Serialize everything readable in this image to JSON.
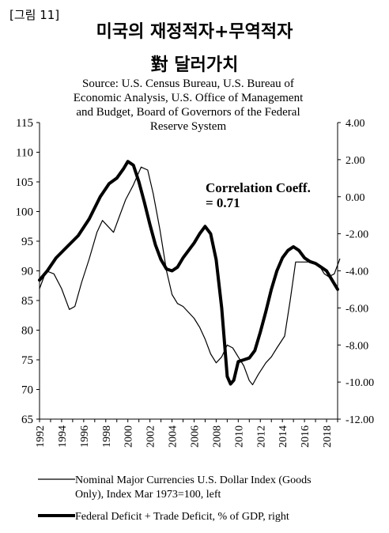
{
  "figure_label": "[그림 11]",
  "title_line1": "미국의 재정적자+무역적자",
  "title_line2": "對 달러가치",
  "chart_data": {
    "type": "line",
    "source_lines": [
      "Source:  U.S. Census Bureau, U.S. Bureau of",
      "Economic  Analysis, U.S. Office of Management",
      "and Budget, Board of Governors of the Federal",
      "Reserve System"
    ],
    "annotation": [
      "Correlation Coeff.",
      "= 0.71"
    ],
    "xlim": [
      1992,
      2019
    ],
    "x_ticks": [
      1992,
      1994,
      1996,
      1998,
      2000,
      2002,
      2004,
      2006,
      2008,
      2010,
      2012,
      2014,
      2016,
      2018
    ],
    "left_axis": {
      "ylim": [
        65,
        115
      ],
      "ticks": [
        "65",
        "70",
        "75",
        "80",
        "85",
        "90",
        "95",
        "100",
        "105",
        "110",
        "115"
      ]
    },
    "right_axis": {
      "ylim": [
        -12,
        4
      ],
      "ticks": [
        "-12.00",
        "-10.00",
        "-8.00",
        "-6.00",
        "-4.00",
        "-2.00",
        "0.00",
        "2.00",
        "4.00"
      ]
    },
    "series": [
      {
        "name": "Nominal Major Currencies U.S. Dollar Index (Goods Only), Index Mar 1973=100, left",
        "axis": "left",
        "legend_lines": [
          "Nominal Major Currencies U.S. Dollar Index (Goods",
          "Only), Index Mar 1973=100, left"
        ],
        "points": [
          [
            1992.0,
            87
          ],
          [
            1992.6,
            90
          ],
          [
            1993.3,
            89.5
          ],
          [
            1994.0,
            87
          ],
          [
            1994.7,
            83.5
          ],
          [
            1995.2,
            84
          ],
          [
            1995.8,
            88
          ],
          [
            1996.5,
            92
          ],
          [
            1997.2,
            96.5
          ],
          [
            1997.7,
            98.5
          ],
          [
            1998.2,
            97.5
          ],
          [
            1998.7,
            96.5
          ],
          [
            1999.2,
            99
          ],
          [
            1999.8,
            102
          ],
          [
            2000.5,
            104.5
          ],
          [
            2001.2,
            107.5
          ],
          [
            2001.8,
            107
          ],
          [
            2002.3,
            103
          ],
          [
            2002.9,
            97
          ],
          [
            2003.5,
            90
          ],
          [
            2004.0,
            86
          ],
          [
            2004.5,
            84.5
          ],
          [
            2005.0,
            84
          ],
          [
            2005.5,
            83
          ],
          [
            2006.0,
            82
          ],
          [
            2006.5,
            80.5
          ],
          [
            2007.0,
            78.5
          ],
          [
            2007.5,
            76
          ],
          [
            2008.0,
            74.5
          ],
          [
            2008.5,
            75.5
          ],
          [
            2009.0,
            77.5
          ],
          [
            2009.5,
            77
          ],
          [
            2010.0,
            75.5
          ],
          [
            2010.5,
            74
          ],
          [
            2011.0,
            71.5
          ],
          [
            2011.3,
            70.8
          ],
          [
            2011.8,
            72.5
          ],
          [
            2012.5,
            74.5
          ],
          [
            2013.0,
            75.5
          ],
          [
            2013.5,
            77
          ],
          [
            2014.2,
            79
          ],
          [
            2014.7,
            85
          ],
          [
            2015.2,
            91.5
          ],
          [
            2016.0,
            91.5
          ],
          [
            2016.7,
            91.5
          ],
          [
            2017.3,
            91
          ],
          [
            2017.8,
            89.5
          ],
          [
            2018.2,
            89
          ],
          [
            2018.7,
            89.5
          ],
          [
            2019.2,
            92
          ]
        ]
      },
      {
        "name": "Federal Deficit + Trade Deficit, % of GDP, right",
        "axis": "right",
        "legend_lines": [
          "Federal Deficit + Trade Deficit, % of GDP, right"
        ],
        "points": [
          [
            1992.0,
            -4.5
          ],
          [
            1992.7,
            -4.0
          ],
          [
            1993.5,
            -3.3
          ],
          [
            1994.5,
            -2.7
          ],
          [
            1995.5,
            -2.1
          ],
          [
            1996.5,
            -1.2
          ],
          [
            1997.5,
            0.0
          ],
          [
            1998.3,
            0.7
          ],
          [
            1999.0,
            1.0
          ],
          [
            1999.6,
            1.5
          ],
          [
            2000.0,
            1.9
          ],
          [
            2000.5,
            1.7
          ],
          [
            2001.0,
            0.8
          ],
          [
            2001.5,
            -0.3
          ],
          [
            2002.0,
            -1.5
          ],
          [
            2002.5,
            -2.6
          ],
          [
            2003.0,
            -3.4
          ],
          [
            2003.5,
            -3.9
          ],
          [
            2004.0,
            -4.0
          ],
          [
            2004.5,
            -3.8
          ],
          [
            2005.0,
            -3.3
          ],
          [
            2005.5,
            -2.9
          ],
          [
            2006.0,
            -2.5
          ],
          [
            2006.5,
            -2.0
          ],
          [
            2007.0,
            -1.6
          ],
          [
            2007.5,
            -2.0
          ],
          [
            2008.0,
            -3.4
          ],
          [
            2008.5,
            -6.0
          ],
          [
            2009.0,
            -9.7
          ],
          [
            2009.3,
            -10.1
          ],
          [
            2009.6,
            -9.9
          ],
          [
            2010.0,
            -8.9
          ],
          [
            2010.5,
            -8.8
          ],
          [
            2011.0,
            -8.7
          ],
          [
            2011.5,
            -8.3
          ],
          [
            2012.0,
            -7.3
          ],
          [
            2012.5,
            -6.2
          ],
          [
            2013.0,
            -5.0
          ],
          [
            2013.5,
            -4.0
          ],
          [
            2014.0,
            -3.3
          ],
          [
            2014.5,
            -2.9
          ],
          [
            2015.0,
            -2.7
          ],
          [
            2015.5,
            -2.9
          ],
          [
            2016.0,
            -3.3
          ],
          [
            2016.5,
            -3.5
          ],
          [
            2017.0,
            -3.6
          ],
          [
            2017.5,
            -3.8
          ],
          [
            2018.0,
            -4.0
          ],
          [
            2018.5,
            -4.5
          ],
          [
            2019.0,
            -5.0
          ]
        ]
      }
    ],
    "grid": false,
    "legend_position": "bottom"
  }
}
